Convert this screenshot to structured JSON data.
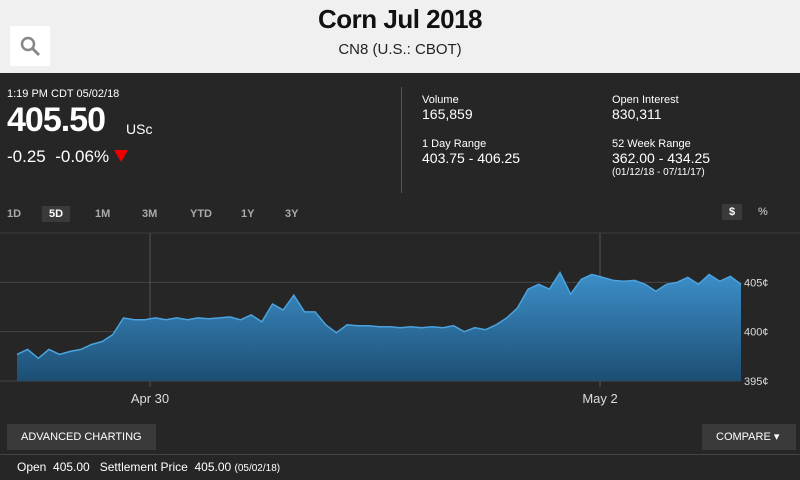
{
  "header": {
    "title": "Corn Jul 2018",
    "subtitle": "CN8 (U.S.: CBOT)"
  },
  "quote": {
    "time": "1:19 PM CDT 05/02/18",
    "price": "405.50",
    "unit": "USc",
    "change": "-0.25",
    "change_pct": "-0.06%"
  },
  "stats": [
    {
      "label": "Volume",
      "value": "165,859"
    },
    {
      "label": "Open Interest",
      "value": "830,311"
    },
    {
      "label": "1 Day Range",
      "value": "403.75 - 406.25"
    },
    {
      "label": "52 Week Range",
      "value": "362.00 - 434.25",
      "note": "(01/12/18 - 07/11/17)"
    }
  ],
  "tabs": [
    "1D",
    "5D",
    "1M",
    "3M",
    "YTD",
    "1Y",
    "3Y"
  ],
  "active_tab": "5D",
  "units": [
    "$",
    "%"
  ],
  "chart_data": {
    "type": "area",
    "color": "#4aa3df",
    "values": [
      397.7,
      398.2,
      397.3,
      398.2,
      397.7,
      398.0,
      398.2,
      398.7,
      399.0,
      399.7,
      401.4,
      401.2,
      401.2,
      401.4,
      401.2,
      401.4,
      401.2,
      401.4,
      401.3,
      401.4,
      401.5,
      401.2,
      401.7,
      401.0,
      402.8,
      402.2,
      403.7,
      402.0,
      402.0,
      400.7,
      399.9,
      400.7,
      400.6,
      400.6,
      400.5,
      400.5,
      400.4,
      400.5,
      400.4,
      400.5,
      400.4,
      400.6,
      400.0,
      400.4,
      400.2,
      400.7,
      401.4,
      402.4,
      404.3,
      404.8,
      404.3,
      406.0,
      403.8,
      405.3,
      405.8,
      405.5,
      405.2,
      405.1,
      405.2,
      404.8,
      404.1,
      404.8,
      405.0,
      405.5,
      404.8,
      405.8,
      405.1,
      405.6,
      404.8
    ],
    "xlim": [
      0,
      68
    ],
    "xticks": [
      {
        "value": 12.49,
        "label": "Apr 30"
      },
      {
        "value": 54.76,
        "label": "May 2"
      }
    ],
    "ylim": [
      395,
      410
    ],
    "yticks": [
      {
        "value": 395,
        "label": "395¢"
      },
      {
        "value": 400,
        "label": "400¢"
      },
      {
        "value": 405,
        "label": "405¢"
      }
    ],
    "grid": true
  },
  "buttons": {
    "advanced": "ADVANCED CHARTING",
    "compare": "COMPARE"
  },
  "footer": [
    {
      "label": "Open",
      "value": "405.00"
    },
    {
      "label": "Settlement Price",
      "value": "405.00",
      "note": "(05/02/18)"
    }
  ]
}
